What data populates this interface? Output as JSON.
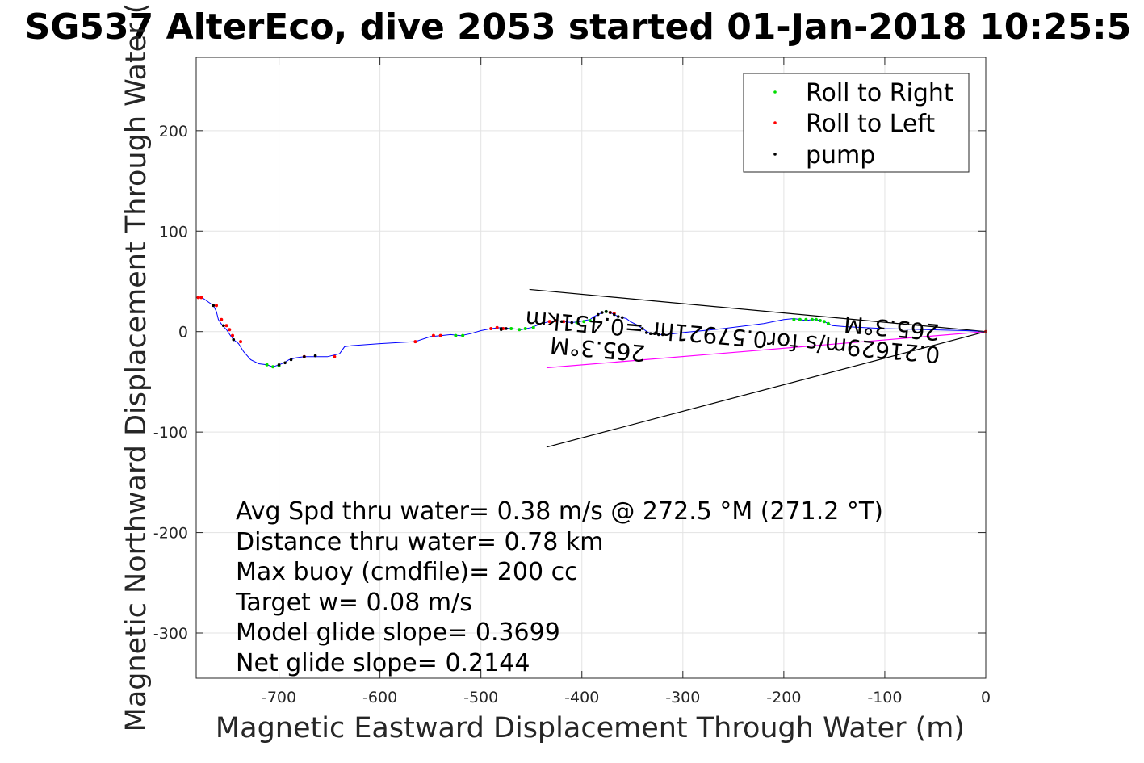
{
  "chart_data": {
    "type": "line",
    "title": "SG537 AlterEco, dive 2053 started 01-Jan-2018 10:25:5",
    "xlabel": "Magnetic Eastward Displacement Through Water (m)",
    "ylabel": "Magnetic Northward Displacement Through Water (",
    "xlim": [
      -782,
      0
    ],
    "ylim": [
      -345,
      273
    ],
    "xticks": [
      -700,
      -600,
      -500,
      -400,
      -300,
      -200,
      -100,
      0
    ],
    "yticks": [
      -300,
      -200,
      -100,
      0,
      100,
      200
    ],
    "xtick_labels": [
      "-700",
      "-600",
      "-500",
      "-400",
      "-300",
      "-200",
      "-100",
      "0"
    ],
    "ytick_labels": [
      "-300",
      "-200",
      "-100",
      "0",
      "100",
      "200"
    ],
    "grid": true,
    "legend_position": "top-right",
    "legend": [
      {
        "label": "Roll to Right",
        "color": "#00dd00"
      },
      {
        "label": "Roll to Left",
        "color": "#ff0000"
      },
      {
        "label": "pump",
        "color": "#000000"
      }
    ],
    "track": {
      "color": "#0000ff",
      "x": [
        -782,
        -775,
        -765,
        -762,
        -760,
        -756,
        -752,
        -748,
        -745,
        -740,
        -735,
        -728,
        -720,
        -712,
        -706,
        -700,
        -695,
        -690,
        -683,
        -675,
        -665,
        -652,
        -640,
        -635,
        -628,
        -600,
        -565,
        -550,
        -540,
        -530,
        -520,
        -510,
        -500,
        -490,
        -480,
        -470,
        -460,
        -450,
        -440,
        -432,
        -425,
        -418,
        -410,
        -402,
        -398,
        -392,
        -388,
        -384,
        -380,
        -376,
        -372,
        -368,
        -364,
        -360,
        -356,
        -352,
        -346,
        -340,
        -334,
        -330,
        -326,
        -322,
        -316,
        -300,
        -260,
        -220,
        -200,
        -190,
        -184,
        -178,
        -172,
        -168,
        -164,
        -160,
        -156,
        -152,
        -140,
        -120,
        -100,
        -60,
        -20,
        0
      ],
      "y": [
        34,
        33,
        26,
        20,
        12,
        6,
        2,
        -4,
        -8,
        -12,
        -20,
        -28,
        -32,
        -33,
        -35,
        -33,
        -31,
        -28,
        -26,
        -25,
        -25,
        -25,
        -22,
        -15,
        -14,
        -12,
        -10,
        -5,
        -4,
        -3,
        -4,
        -2,
        1,
        3,
        4,
        3,
        2,
        4,
        8,
        10,
        11,
        10,
        9,
        10,
        11,
        12,
        15,
        17,
        19,
        20,
        19,
        17,
        15,
        14,
        13,
        10,
        7,
        3,
        -1,
        -2,
        -2,
        -3,
        -3,
        -1,
        3,
        8,
        12,
        13,
        12,
        11,
        12,
        12,
        11,
        10,
        8,
        6,
        5,
        4,
        3,
        2,
        1,
        0
      ]
    },
    "roll_right": {
      "color": "#00dd00",
      "points": [
        [
          -712,
          -33
        ],
        [
          -706,
          -35
        ],
        [
          -700,
          -34
        ],
        [
          -525,
          -4
        ],
        [
          -518,
          -4
        ],
        [
          -470,
          3
        ],
        [
          -462,
          2
        ],
        [
          -456,
          3
        ],
        [
          -448,
          4
        ],
        [
          -405,
          9
        ],
        [
          -398,
          10
        ],
        [
          -392,
          11
        ],
        [
          -376,
          20
        ],
        [
          -190,
          12
        ],
        [
          -184,
          12
        ],
        [
          -178,
          12
        ],
        [
          -172,
          12
        ],
        [
          -168,
          12
        ],
        [
          -164,
          11
        ],
        [
          -160,
          10
        ],
        [
          -156,
          8
        ]
      ]
    },
    "roll_left": {
      "color": "#ff0000",
      "points": [
        [
          -780,
          34
        ],
        [
          -777,
          34
        ],
        [
          -762,
          26
        ],
        [
          -757,
          12
        ],
        [
          -752,
          6
        ],
        [
          -749,
          2
        ],
        [
          -746,
          -4
        ],
        [
          -738,
          -10
        ],
        [
          -675,
          -25
        ],
        [
          -645,
          -25
        ],
        [
          -565,
          -10
        ],
        [
          -547,
          -4
        ],
        [
          -540,
          -4
        ],
        [
          -490,
          3
        ],
        [
          -484,
          4
        ],
        [
          -478,
          3
        ],
        [
          -432,
          10
        ],
        [
          -426,
          11
        ],
        [
          -418,
          10
        ],
        [
          -372,
          19
        ],
        [
          -368,
          18
        ],
        [
          0,
          0
        ]
      ]
    },
    "pump": {
      "color": "#000000",
      "points": [
        [
          -765,
          26
        ],
        [
          -755,
          6
        ],
        [
          -745,
          -8
        ],
        [
          -700,
          -33
        ],
        [
          -694,
          -31
        ],
        [
          -688,
          -28
        ],
        [
          -675,
          -25
        ],
        [
          -664,
          -24
        ],
        [
          -480,
          3
        ],
        [
          -475,
          3
        ],
        [
          -480,
          2
        ],
        [
          -420,
          10
        ],
        [
          -384,
          17
        ],
        [
          -380,
          19
        ],
        [
          -376,
          20
        ],
        [
          -372,
          19
        ],
        [
          -368,
          17
        ],
        [
          -364,
          15
        ],
        [
          -360,
          14
        ],
        [
          -340,
          3
        ],
        [
          -336,
          -1
        ],
        [
          -332,
          -2
        ],
        [
          -328,
          -2
        ],
        [
          -324,
          -3
        ],
        [
          -320,
          -3
        ],
        [
          -410,
          9
        ]
      ]
    },
    "wedge": {
      "color": "#000000",
      "lines": [
        [
          [
            -452,
            42
          ],
          [
            0,
            0
          ]
        ],
        [
          [
            -435,
            -115
          ],
          [
            0,
            0
          ]
        ]
      ]
    },
    "current_line": {
      "color": "#ff00ff",
      "x": [
        -435,
        0
      ],
      "y": [
        -36,
        0
      ]
    },
    "annotations": [
      {
        "text": "0.21629m/s for0.57921hr =0.451km",
        "x": 0,
        "y": 0,
        "rotate": 185
      },
      {
        "text": "265.3°M",
        "x": -340,
        "y": -18,
        "rotate": 185
      },
      {
        "text": "265.3°M",
        "x": -50,
        "y": 0,
        "rotate": 185
      }
    ],
    "stats": [
      "Avg Spd thru water=  0.38 m/s @ 272.5 °M (271.2 °T)",
      "Distance thru water=  0.78 km",
      "Max buoy (cmdfile)= 200 cc",
      "Target w= 0.08 m/s",
      "Model glide slope= 0.3699",
      "Net glide slope= 0.2144"
    ]
  }
}
